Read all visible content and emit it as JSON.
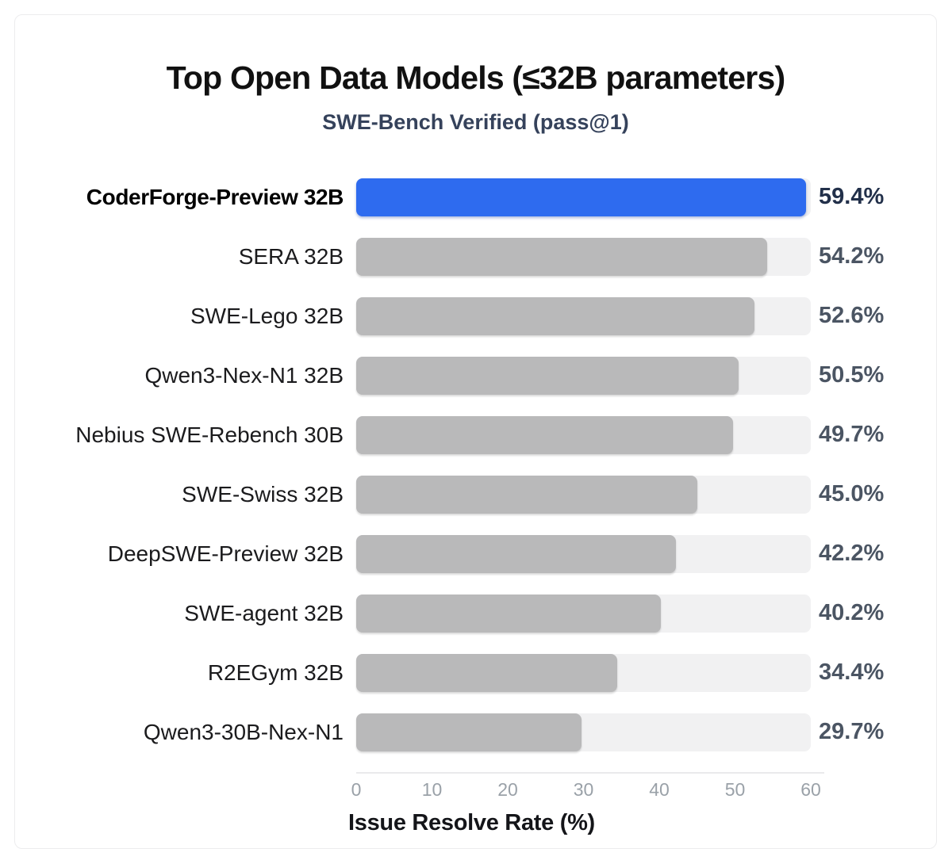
{
  "header": {
    "title": "Top Open Data Models (≤32B parameters)",
    "subtitle": "SWE-Bench Verified (pass@1)"
  },
  "axis": {
    "xlabel": "Issue Resolve Rate (%)"
  },
  "colors": {
    "highlight_bar": "#2e6bef",
    "bar": "#b9b9ba",
    "track": "#f1f1f2",
    "value_text": "#4b5563",
    "highlight_value_text": "#22304a",
    "subtitle_text": "#35425b"
  },
  "chart_data": {
    "type": "bar",
    "orientation": "horizontal",
    "title": "Top Open Data Models (≤32B parameters)",
    "subtitle": "SWE-Bench Verified (pass@1)",
    "xlabel": "Issue Resolve Rate (%)",
    "xlim": [
      0,
      60
    ],
    "x_ticks": [
      "0",
      "10",
      "20",
      "30",
      "40",
      "50",
      "60"
    ],
    "grid": false,
    "legend": false,
    "highlight_index": 0,
    "rows": [
      {
        "label": "CoderForge-Preview 32B",
        "value": 59.4,
        "display": "59.4%",
        "highlight": true
      },
      {
        "label": "SERA 32B",
        "value": 54.2,
        "display": "54.2%",
        "highlight": false
      },
      {
        "label": "SWE-Lego 32B",
        "value": 52.6,
        "display": "52.6%",
        "highlight": false
      },
      {
        "label": "Qwen3-Nex-N1 32B",
        "value": 50.5,
        "display": "50.5%",
        "highlight": false
      },
      {
        "label": "Nebius SWE-Rebench 30B",
        "value": 49.7,
        "display": "49.7%",
        "highlight": false
      },
      {
        "label": "SWE-Swiss 32B",
        "value": 45.0,
        "display": "45.0%",
        "highlight": false
      },
      {
        "label": "DeepSWE-Preview 32B",
        "value": 42.2,
        "display": "42.2%",
        "highlight": false
      },
      {
        "label": "SWE-agent 32B",
        "value": 40.2,
        "display": "40.2%",
        "highlight": false
      },
      {
        "label": "R2EGym 32B",
        "value": 34.4,
        "display": "34.4%",
        "highlight": false
      },
      {
        "label": "Qwen3-30B-Nex-N1",
        "value": 29.7,
        "display": "29.7%",
        "highlight": false
      }
    ]
  }
}
